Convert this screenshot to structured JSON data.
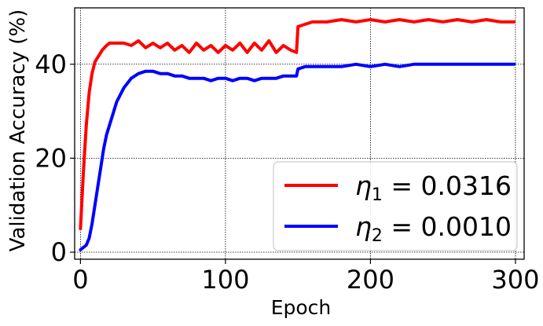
{
  "chart_data": {
    "type": "line",
    "title": "",
    "xlabel": "Epoch",
    "ylabel": "Validation Accuracy (%)",
    "xlim": [
      -4,
      306
    ],
    "ylim": [
      -1.5,
      52
    ],
    "xticks": [
      0,
      100,
      200,
      300
    ],
    "yticks": [
      0,
      20,
      40
    ],
    "grid": true,
    "legend_position": "lower-right",
    "series": [
      {
        "name": "η1 = 0.0316",
        "legend_base": "η",
        "legend_sub": "1",
        "legend_value": " = 0.0316",
        "color": "#ff0000",
        "x": [
          0,
          2,
          4,
          6,
          8,
          10,
          12,
          15,
          18,
          20,
          25,
          30,
          35,
          40,
          45,
          50,
          55,
          60,
          65,
          70,
          75,
          80,
          85,
          90,
          95,
          100,
          105,
          110,
          115,
          120,
          125,
          130,
          135,
          140,
          145,
          149,
          150,
          155,
          160,
          170,
          180,
          190,
          200,
          210,
          220,
          230,
          240,
          250,
          260,
          270,
          280,
          290,
          299
        ],
        "y": [
          5,
          17,
          27,
          34,
          38,
          40.5,
          41.5,
          43,
          44,
          44.5,
          44.5,
          44.5,
          44,
          45,
          43.5,
          44.5,
          43.5,
          44.5,
          43,
          44,
          42.5,
          44.5,
          43,
          44,
          42.5,
          44,
          43,
          44.5,
          42.5,
          44.5,
          43,
          45,
          42.5,
          44,
          43,
          42.5,
          48,
          48.5,
          49,
          49,
          49.5,
          49,
          49.5,
          49,
          49.5,
          49,
          49.5,
          49,
          49.5,
          49,
          49.5,
          49,
          49
        ]
      },
      {
        "name": "η2 = 0.0010",
        "legend_base": "η",
        "legend_sub": "2",
        "legend_value": " = 0.0010",
        "color": "#0000ff",
        "x": [
          0,
          2,
          4,
          6,
          8,
          10,
          12,
          14,
          16,
          18,
          20,
          25,
          30,
          35,
          40,
          45,
          50,
          55,
          60,
          65,
          70,
          75,
          80,
          85,
          90,
          95,
          100,
          105,
          110,
          115,
          120,
          125,
          130,
          135,
          140,
          145,
          149,
          150,
          155,
          160,
          170,
          180,
          190,
          200,
          210,
          220,
          230,
          240,
          250,
          260,
          270,
          280,
          290,
          299
        ],
        "y": [
          0.5,
          1,
          1.5,
          3,
          6,
          10,
          14,
          18,
          22,
          25,
          27,
          32,
          35,
          37,
          38,
          38.5,
          38.5,
          38,
          38,
          37.5,
          37.5,
          37,
          37,
          37,
          36.5,
          37,
          37,
          36.5,
          37,
          37,
          36.5,
          37,
          37,
          37,
          37.5,
          37.5,
          37.5,
          39,
          39.5,
          39.5,
          39.5,
          39.5,
          40,
          39.5,
          40,
          39.5,
          40,
          40,
          40,
          40,
          40,
          40,
          40,
          40
        ]
      }
    ]
  }
}
